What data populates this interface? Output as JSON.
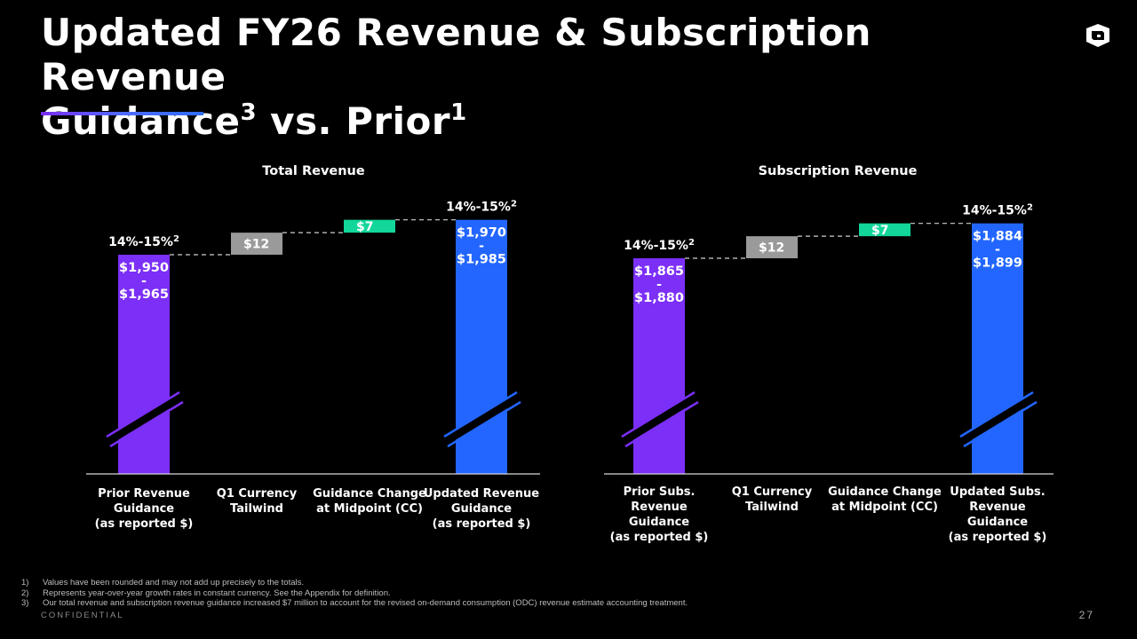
{
  "page": {
    "title_line1": "Updated FY26 Revenue & Subscription Revenue",
    "title_line2_a": "Guidance",
    "title_sup_a": "3",
    "title_line2_b": " vs. Prior",
    "title_sup_b": "1",
    "footnotes": [
      {
        "num": "1)",
        "text": "Values have been rounded and may not add up precisely to the totals."
      },
      {
        "num": "2)",
        "text": "Represents year-over-year growth rates in constant currency. See the Appendix for definition."
      },
      {
        "num": "3)",
        "text": "Our total revenue and subscription revenue guidance increased $7 million to account for the revised on-demand consumption (ODC) revenue estimate accounting treatment."
      }
    ],
    "confidential": "CONFIDENTIAL",
    "page_number": "27",
    "logo_icon": "cube-logo-icon"
  },
  "colors": {
    "prior_bar": "#7b2ff7",
    "increase_gray": "#9a9a9a",
    "increase_green": "#12d69a",
    "updated_bar": "#2266ff",
    "text": "#ffffff"
  },
  "chart_data": [
    {
      "type": "bar",
      "subtype": "waterfall",
      "title": "Total Revenue",
      "categories": [
        "Prior Revenue\nGuidance\n(as reported $)",
        "Q1 Currency\nTailwind",
        "Guidance Change\nat Midpoint (CC)",
        "Updated Revenue\nGuidance\n(as reported $)"
      ],
      "value_labels": [
        "$1,950\n-\n$1,965",
        "$12",
        "$7",
        "$1,970\n-\n$1,985"
      ],
      "values_low": [
        1950,
        12,
        7,
        1970
      ],
      "values_high": [
        1965,
        12,
        7,
        1985
      ],
      "growth_labels": [
        "14%-15%²",
        "",
        "",
        "14%-15%²"
      ],
      "bar_kinds": [
        "total",
        "increase",
        "increase",
        "total"
      ],
      "axis_break": true
    },
    {
      "type": "bar",
      "subtype": "waterfall",
      "title": "Subscription Revenue",
      "categories": [
        "Prior Subs.\nRevenue\nGuidance\n(as reported $)",
        "Q1 Currency\nTailwind",
        "Guidance Change\nat Midpoint (CC)",
        "Updated Subs.\nRevenue\nGuidance\n(as reported $)"
      ],
      "value_labels": [
        "$1,865\n-\n$1,880",
        "$12",
        "$7",
        "$1,884\n-\n$1,899"
      ],
      "values_low": [
        1865,
        12,
        7,
        1884
      ],
      "values_high": [
        1880,
        12,
        7,
        1899
      ],
      "growth_labels": [
        "14%-15%²",
        "",
        "",
        "14%-15%²"
      ],
      "bar_kinds": [
        "total",
        "increase",
        "increase",
        "total"
      ],
      "axis_break": true
    }
  ]
}
